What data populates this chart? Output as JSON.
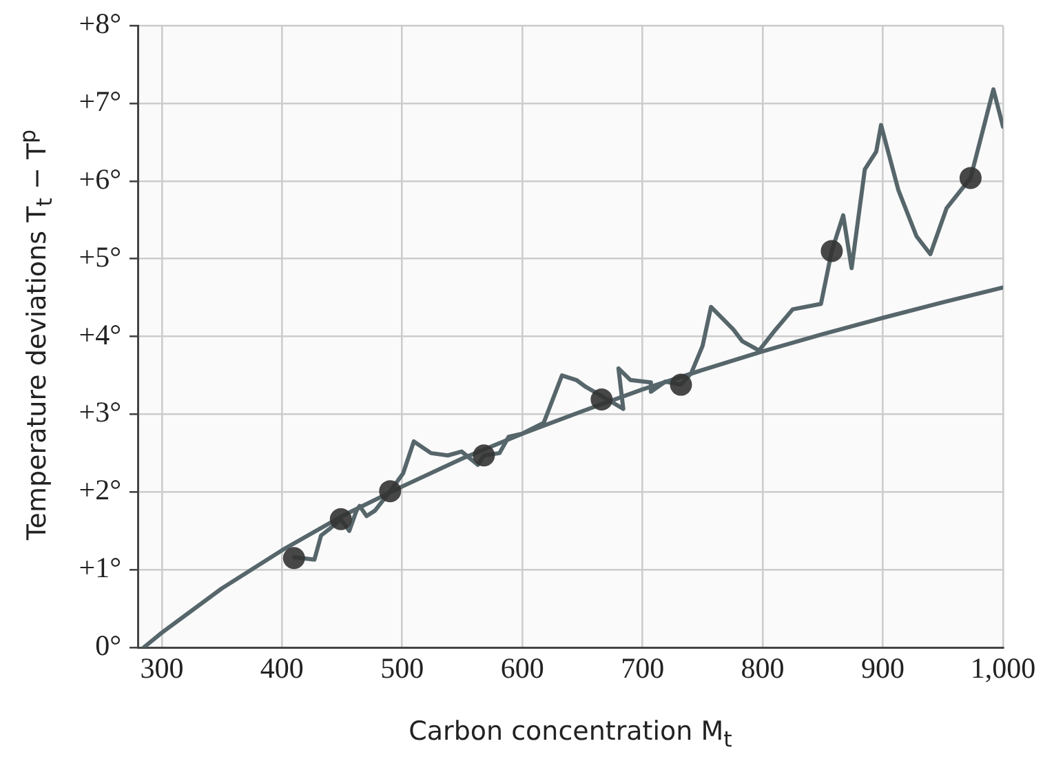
{
  "chart_data": {
    "type": "line",
    "xlabel": "Carbon concentration M$_{t}$",
    "ylabel": "Temperature deviations T$_{t}$ − T$^{p}$",
    "xlim": [
      280,
      1000
    ],
    "xticks": [
      300,
      400,
      500,
      600,
      700,
      800,
      900,
      {
        "value": 1000,
        "label": "1,000"
      }
    ],
    "ylim": [
      0,
      8
    ],
    "yticks": [
      {
        "value": 0,
        "label": "0°"
      },
      {
        "value": 1,
        "label": "+1°"
      },
      {
        "value": 2,
        "label": "+2°"
      },
      {
        "value": 3,
        "label": "+3°"
      },
      {
        "value": 4,
        "label": "+4°"
      },
      {
        "value": 5,
        "label": "+5°"
      },
      {
        "value": 6,
        "label": "+6°"
      },
      {
        "value": 7,
        "label": "+7°"
      },
      {
        "value": 8,
        "label": "+8°"
      }
    ],
    "grid": true,
    "legend": false,
    "marker": "none",
    "line_style": "solid",
    "series": [
      {
        "color": "#56666a",
        "x": [
          285,
          300,
          350,
          400,
          450,
          500,
          550,
          600,
          650,
          700,
          750,
          800,
          850,
          900,
          950,
          1000
        ],
        "values": [
          0,
          0.19,
          0.76,
          1.25,
          1.69,
          2.07,
          2.43,
          2.75,
          3.04,
          3.32,
          3.57,
          3.81,
          4.03,
          4.24,
          4.44,
          4.63
        ]
      },
      {
        "color": "#56666a",
        "x": [
          410,
          427,
          432.5,
          440,
          449,
          456,
          462,
          464.6,
          470.4,
          477.4,
          490,
          500.8,
          509.7,
          524,
          538,
          549.5,
          563,
          568,
          581,
          588.6,
          600,
          617.8,
          633,
          645,
          653,
          666.5,
          684,
          680,
          690,
          707,
          707,
          719,
          732,
          740.6,
          750,
          757,
          775.6,
          783,
          797,
          810.8,
          825,
          848.5,
          857.5,
          867,
          874,
          885,
          894.5,
          898.5,
          913,
          928,
          939.5,
          953,
          973,
          992,
          1000
        ],
        "values": [
          1.16,
          1.13,
          1.44,
          1.53,
          1.65,
          1.5,
          1.76,
          1.82,
          1.69,
          1.76,
          2.01,
          2.24,
          2.65,
          2.5,
          2.47,
          2.52,
          2.35,
          2.47,
          2.5,
          2.71,
          2.75,
          2.89,
          3.5,
          3.44,
          3.35,
          3.23,
          3.07,
          3.59,
          3.44,
          3.41,
          3.29,
          3.42,
          3.38,
          3.53,
          3.88,
          4.38,
          4.09,
          3.94,
          3.82,
          4.09,
          4.35,
          4.42,
          5.1,
          5.56,
          4.88,
          6.15,
          6.38,
          6.72,
          5.88,
          5.29,
          5.06,
          5.65,
          6.04,
          7.18,
          6.7
        ]
      },
      {
        "type": "scatter",
        "marker": "circle",
        "color": "#333333",
        "x": [
          410,
          449,
          490,
          568,
          666,
          732,
          857.5,
          973
        ],
        "values": [
          1.15,
          1.65,
          2.01,
          2.47,
          3.19,
          3.38,
          5.1,
          6.04
        ]
      }
    ]
  }
}
